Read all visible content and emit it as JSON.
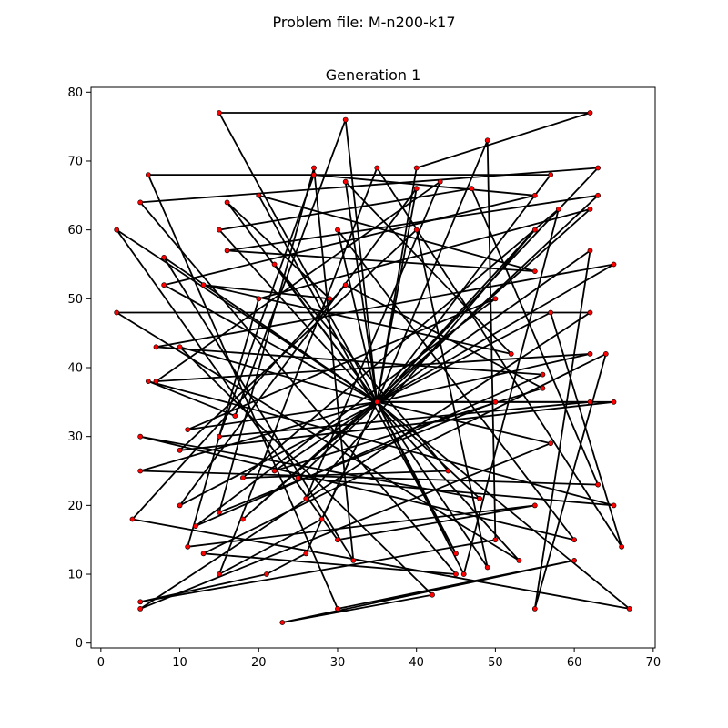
{
  "figure": {
    "suptitle": "Problem file: M-n200-k17",
    "background": "#ffffff"
  },
  "chart_data": {
    "type": "line",
    "title": "Generation 1",
    "xlabel": "",
    "ylabel": "",
    "xlim": [
      -1.25,
      70.25
    ],
    "ylim": [
      -0.7,
      80.7
    ],
    "xticks": [
      0,
      10,
      20,
      30,
      40,
      50,
      60,
      70
    ],
    "yticks": [
      0,
      10,
      20,
      30,
      40,
      50,
      60,
      70,
      80
    ],
    "grid": false,
    "legend": "none",
    "line_color": "#000000",
    "marker_color": "#ff0000",
    "depot": [
      35,
      35
    ],
    "routes": [
      [
        [
          35,
          35
        ],
        [
          15,
          77
        ],
        [
          62,
          77
        ],
        [
          40,
          69
        ],
        [
          35,
          35
        ]
      ],
      [
        [
          35,
          35
        ],
        [
          31,
          76
        ],
        [
          17,
          33
        ],
        [
          6,
          38
        ],
        [
          65,
          20
        ],
        [
          25,
          24
        ],
        [
          63,
          65
        ],
        [
          16,
          57
        ],
        [
          55,
          54
        ],
        [
          20,
          65
        ],
        [
          45,
          13
        ],
        [
          35,
          35
        ]
      ],
      [
        [
          35,
          35
        ],
        [
          8,
          56
        ],
        [
          32,
          12
        ],
        [
          27,
          69
        ],
        [
          15,
          19
        ],
        [
          50,
          35
        ],
        [
          35,
          35
        ]
      ],
      [
        [
          35,
          35
        ],
        [
          57,
          68
        ],
        [
          6,
          68
        ],
        [
          30,
          5
        ],
        [
          60,
          12
        ],
        [
          23,
          3
        ],
        [
          42,
          7
        ],
        [
          10,
          43
        ],
        [
          35,
          35
        ]
      ],
      [
        [
          35,
          35
        ],
        [
          5,
          25
        ],
        [
          63,
          23
        ],
        [
          47,
          66
        ],
        [
          15,
          60
        ],
        [
          53,
          12
        ],
        [
          2,
          48
        ],
        [
          62,
          48
        ],
        [
          5,
          5
        ],
        [
          57,
          29
        ],
        [
          35,
          35
        ]
      ],
      [
        [
          35,
          35
        ],
        [
          2,
          60
        ],
        [
          30,
          15
        ],
        [
          55,
          20
        ],
        [
          11,
          14
        ],
        [
          20,
          50
        ],
        [
          62,
          63
        ],
        [
          18,
          18
        ],
        [
          35,
          35
        ]
      ],
      [
        [
          35,
          35
        ],
        [
          63,
          69
        ],
        [
          5,
          64
        ],
        [
          45,
          10
        ],
        [
          13,
          13
        ],
        [
          64,
          42
        ],
        [
          55,
          5
        ],
        [
          62,
          57
        ],
        [
          35,
          35
        ]
      ],
      [
        [
          35,
          35
        ],
        [
          49,
          73
        ],
        [
          50,
          15
        ],
        [
          5,
          6
        ],
        [
          21,
          10
        ],
        [
          26,
          13
        ],
        [
          35,
          35
        ]
      ],
      [
        [
          35,
          35
        ],
        [
          62,
          35
        ],
        [
          15,
          30
        ],
        [
          27,
          68
        ],
        [
          55,
          65
        ],
        [
          8,
          52
        ],
        [
          35,
          35
        ]
      ],
      [
        [
          35,
          35
        ],
        [
          67,
          5
        ],
        [
          4,
          18
        ],
        [
          31,
          52
        ],
        [
          56,
          37
        ],
        [
          22,
          25
        ],
        [
          35,
          35
        ]
      ],
      [
        [
          35,
          35
        ],
        [
          28,
          18
        ],
        [
          15,
          10
        ],
        [
          35,
          69
        ],
        [
          66,
          14
        ],
        [
          57,
          48
        ],
        [
          10,
          20
        ],
        [
          40,
          66
        ],
        [
          35,
          35
        ]
      ],
      [
        [
          35,
          35
        ],
        [
          65,
          55
        ],
        [
          7,
          43
        ],
        [
          56,
          39
        ],
        [
          12,
          17
        ],
        [
          50,
          50
        ],
        [
          11,
          31
        ],
        [
          35,
          35
        ]
      ],
      [
        [
          35,
          35
        ],
        [
          30,
          60
        ],
        [
          60,
          15
        ],
        [
          5,
          30
        ],
        [
          48,
          21
        ],
        [
          35,
          35
        ]
      ],
      [
        [
          35,
          35
        ],
        [
          55,
          60
        ],
        [
          26,
          21
        ],
        [
          43,
          67
        ],
        [
          7,
          38
        ],
        [
          62,
          42
        ],
        [
          35,
          35
        ]
      ],
      [
        [
          35,
          35
        ],
        [
          46,
          10
        ],
        [
          58,
          63
        ],
        [
          18,
          24
        ],
        [
          44,
          25
        ],
        [
          22,
          55
        ],
        [
          35,
          35
        ]
      ],
      [
        [
          35,
          35
        ],
        [
          65,
          35
        ],
        [
          10,
          28
        ],
        [
          40,
          60
        ],
        [
          49,
          11
        ],
        [
          35,
          35
        ]
      ],
      [
        [
          35,
          35
        ],
        [
          31,
          67
        ],
        [
          52,
          42
        ],
        [
          13,
          52
        ],
        [
          29,
          50
        ],
        [
          16,
          64
        ],
        [
          35,
          35
        ]
      ]
    ]
  }
}
